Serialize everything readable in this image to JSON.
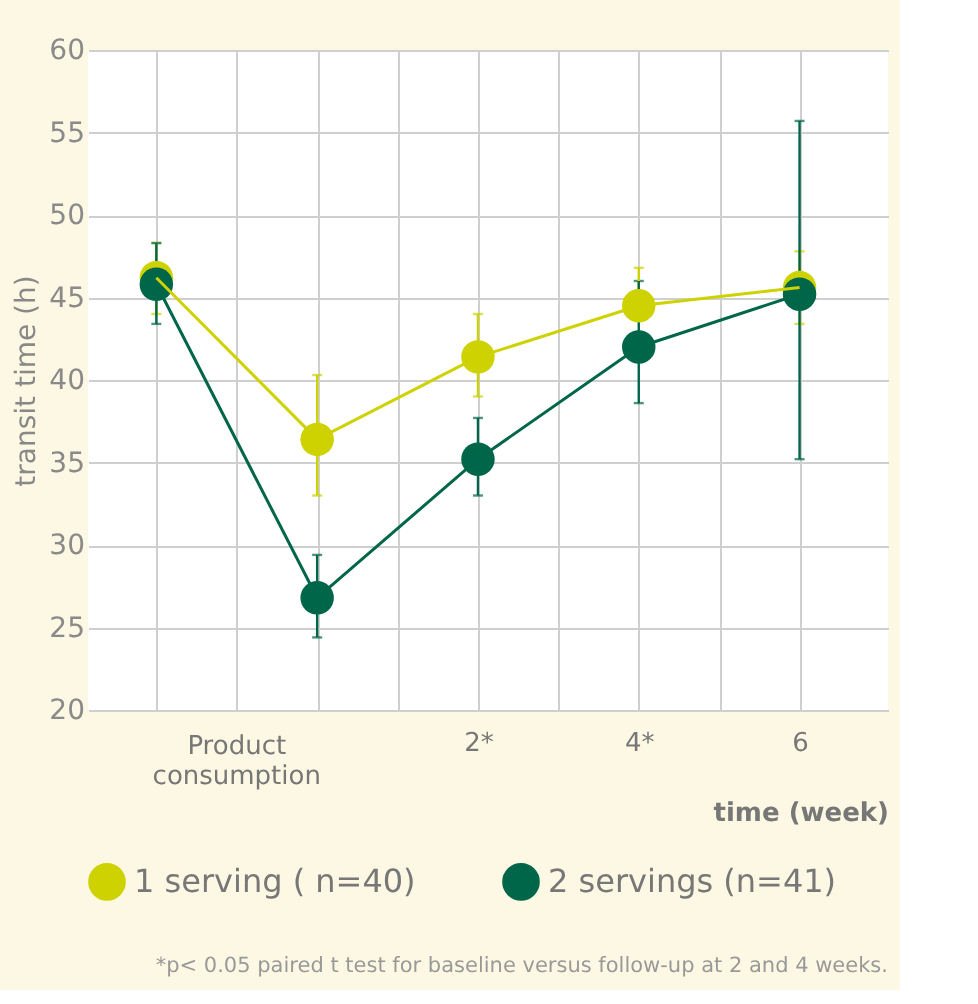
{
  "chart_data": {
    "type": "line",
    "xlabel": "time (week)",
    "ylabel": "transit time (h)",
    "x": [
      -2,
      0,
      2,
      4,
      6
    ],
    "series": [
      {
        "name": "1 serving ( n=40)",
        "color": "#cdd200",
        "values": [
          46.2,
          36.4,
          41.4,
          44.5,
          45.6
        ],
        "errors": [
          [
            44.0,
            48.3
          ],
          [
            33.0,
            40.3
          ],
          [
            39.0,
            44.0
          ],
          [
            44.5,
            46.8
          ],
          [
            43.4,
            47.8
          ]
        ]
      },
      {
        "name": "2 servings (n=41)",
        "color": "#00664a",
        "values": [
          45.8,
          26.8,
          35.2,
          42.0,
          45.2
        ],
        "errors": [
          [
            43.4,
            48.3
          ],
          [
            24.4,
            29.4
          ],
          [
            33.0,
            37.7
          ],
          [
            38.6,
            46.0
          ],
          [
            35.2,
            55.7
          ]
        ]
      }
    ],
    "xlim": [
      -2.85,
      7.1
    ],
    "xticks": [
      {
        "value": -2,
        "label": null
      },
      {
        "value": -1,
        "label": null
      },
      {
        "value": 0,
        "label": null
      },
      {
        "value": 1,
        "label": null
      },
      {
        "value": 2,
        "label": "2*"
      },
      {
        "value": 3,
        "label": null
      },
      {
        "value": 4,
        "label": "4*"
      },
      {
        "value": 5,
        "label": null
      },
      6
    ],
    "ylim": [
      20,
      60
    ],
    "yticks": [
      20,
      25,
      30,
      35,
      40,
      45,
      50,
      55,
      60
    ],
    "grid": true,
    "legend": "bottom",
    "marker": "circle",
    "line_style": "solid",
    "annotations": [
      "Product consumption",
      "*p< 0.05 paired t test for baseline versus follow-up at 2 and 4 weeks."
    ]
  }
}
